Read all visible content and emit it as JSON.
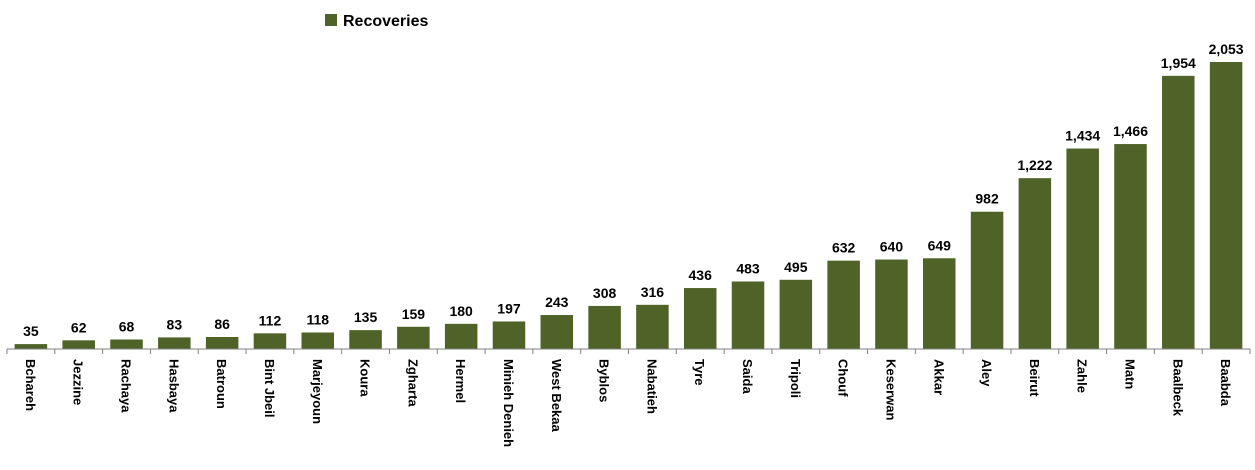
{
  "chart_data": {
    "type": "bar",
    "title": "",
    "xlabel": "",
    "ylabel": "",
    "ylim": [
      0,
      2100
    ],
    "grid": false,
    "legend_position": "top-center",
    "categories": [
      "Bchareh",
      "Jezzine",
      "Rachaya",
      "Hasbaya",
      "Batroun",
      "Bint Jbeil",
      "Marjeyoun",
      "Koura",
      "Zgharta",
      "Hermel",
      "Minieh Denieh",
      "West Bekaa",
      "Byblos",
      "Nabatieh",
      "Tyre",
      "Saida",
      "Tripoli",
      "Chouf",
      "Keserwan",
      "Akkar",
      "Aley",
      "Beirut",
      "Zahle",
      "Matn",
      "Baalbeck",
      "Baabda"
    ],
    "series": [
      {
        "name": "Recoveries",
        "color": "#4f6228",
        "values": [
          35,
          62,
          68,
          83,
          86,
          112,
          118,
          135,
          159,
          180,
          197,
          243,
          308,
          316,
          436,
          483,
          495,
          632,
          640,
          649,
          982,
          1222,
          1434,
          1466,
          1954,
          2053
        ],
        "data_labels": [
          "35",
          "62",
          "68",
          "83",
          "86",
          "112",
          "118",
          "135",
          "159",
          "180",
          "197",
          "243",
          "308",
          "316",
          "436",
          "483",
          "495",
          "632",
          "640",
          "649",
          "982",
          "1,222",
          "1,434",
          "1,466",
          "1,954",
          "2,053"
        ]
      }
    ]
  }
}
